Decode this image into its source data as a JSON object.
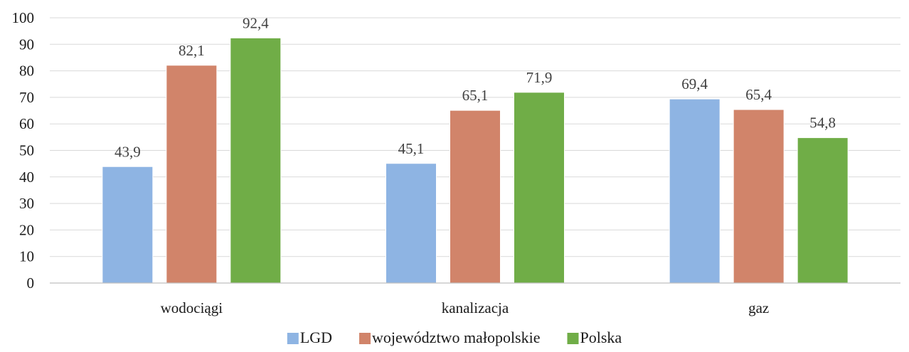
{
  "chart_data": {
    "type": "bar",
    "categories": [
      "wodociągi",
      "kanalizacja",
      "gaz"
    ],
    "series": [
      {
        "name": "LGD",
        "values": [
          43.9,
          45.1,
          69.4
        ],
        "labels": [
          "43,9",
          "45,1",
          "69,4"
        ],
        "color": "#8EB4E3"
      },
      {
        "name": "województwo małopolskie",
        "values": [
          82.1,
          65.1,
          65.4
        ],
        "labels": [
          "82,1",
          "65,1",
          "65,4"
        ],
        "color": "#D1846A"
      },
      {
        "name": "Polska",
        "values": [
          92.4,
          71.9,
          54.8
        ],
        "labels": [
          "92,4",
          "71,9",
          "54,8"
        ],
        "color": "#70AD47"
      }
    ],
    "ylim": [
      0,
      100
    ],
    "yticks": [
      "0",
      "10",
      "20",
      "30",
      "40",
      "50",
      "60",
      "70",
      "80",
      "90",
      "100"
    ],
    "grid": true,
    "legend": "bottom",
    "gridColor": "#d9d9d9",
    "axisColor": "#bfbfbf"
  }
}
